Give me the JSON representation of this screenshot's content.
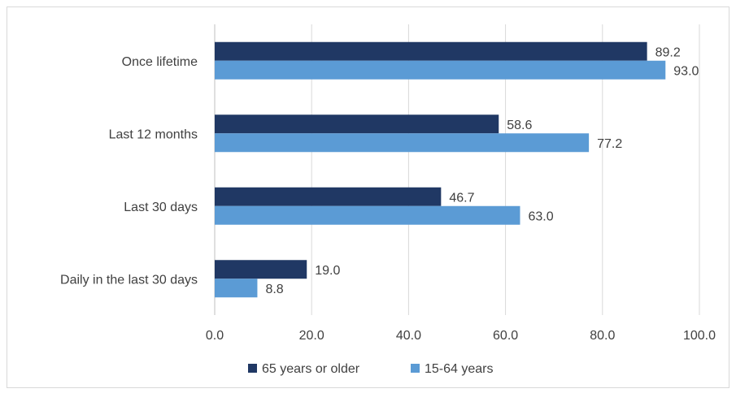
{
  "chart_data": {
    "type": "bar",
    "orientation": "horizontal",
    "categories": [
      "Once lifetime",
      "Last 12 months",
      "Last 30 days",
      "Daily in the last 30 days"
    ],
    "series": [
      {
        "name": "65 years or older",
        "values": [
          89.2,
          58.6,
          46.7,
          19.0
        ],
        "labels": [
          "89.2",
          "58.6",
          "46.7",
          "19.0"
        ],
        "color": "#203864"
      },
      {
        "name": "15-64 years",
        "values": [
          93.0,
          77.2,
          63.0,
          8.8
        ],
        "labels": [
          "93.0",
          "77.2",
          "63.0",
          "8.8"
        ],
        "color": "#5b9bd5"
      }
    ],
    "xlim": [
      0,
      100
    ],
    "xticks": [
      "0.0",
      "20.0",
      "40.0",
      "60.0",
      "80.0",
      "100.0"
    ],
    "grid": "vertical",
    "legend": "bottom",
    "title": "",
    "xlabel": "",
    "ylabel": ""
  }
}
